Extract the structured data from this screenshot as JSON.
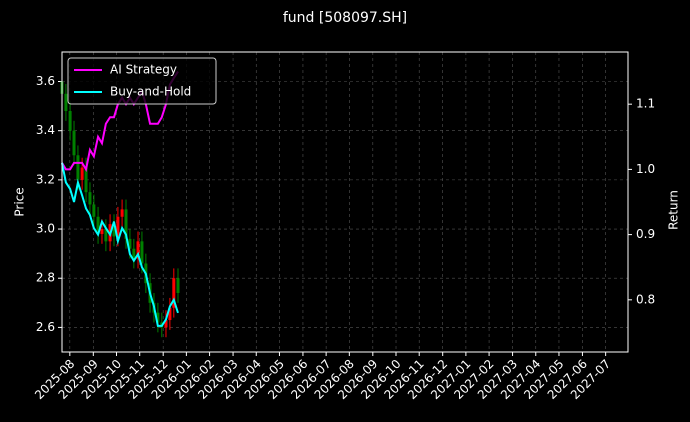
{
  "chart_data": {
    "type": "candlestick",
    "title": "fund [508097.SH]",
    "ylabel": "Price",
    "y2label": "Return",
    "x": [
      2025.555,
      2025.569,
      2025.584,
      2025.598,
      2025.612,
      2025.627,
      2025.641,
      2025.655,
      2025.669,
      2025.684,
      2025.698,
      2025.712,
      2025.727,
      2025.741,
      2025.755,
      2025.77,
      2025.784,
      2025.798,
      2025.812,
      2025.827,
      2025.841,
      2025.855,
      2025.87,
      2025.884,
      2025.898,
      2025.912,
      2025.927,
      2025.941,
      2025.955,
      2025.97
    ],
    "open": [
      3.6,
      3.55,
      3.48,
      3.4,
      3.3,
      3.2,
      3.25,
      3.15,
      3.1,
      3.05,
      2.98,
      3.0,
      2.95,
      3.02,
      2.97,
      3.05,
      3.08,
      2.96,
      2.92,
      2.88,
      2.95,
      2.86,
      2.78,
      2.7,
      2.66,
      2.62,
      2.6,
      2.63,
      2.68,
      2.8
    ],
    "high": [
      3.64,
      3.59,
      3.52,
      3.44,
      3.34,
      3.29,
      3.29,
      3.19,
      3.14,
      3.09,
      3.04,
      3.04,
      3.06,
      3.06,
      3.09,
      3.12,
      3.12,
      3.0,
      2.96,
      2.99,
      2.99,
      2.9,
      2.82,
      2.74,
      2.7,
      2.66,
      2.67,
      2.72,
      2.84,
      2.84
    ],
    "low": [
      3.51,
      3.44,
      3.36,
      3.26,
      3.16,
      3.16,
      3.11,
      3.06,
      3.01,
      2.94,
      2.94,
      2.91,
      2.91,
      2.93,
      2.93,
      3.01,
      2.92,
      2.88,
      2.84,
      2.84,
      2.82,
      2.74,
      2.66,
      2.62,
      2.58,
      2.56,
      2.56,
      2.59,
      2.64,
      2.7
    ],
    "close": [
      3.55,
      3.48,
      3.4,
      3.3,
      3.2,
      3.25,
      3.15,
      3.1,
      3.05,
      2.98,
      3.0,
      2.95,
      3.02,
      2.97,
      3.05,
      3.08,
      2.96,
      2.92,
      2.88,
      2.95,
      2.86,
      2.78,
      2.7,
      2.66,
      2.62,
      2.6,
      2.63,
      2.68,
      2.8,
      2.74
    ],
    "up_color": "#ff0000",
    "down_color": "#008000",
    "series": [
      {
        "name": "AI Strategy",
        "color": "#ff00ff",
        "axis": "y2",
        "values": [
          1.01,
          1.0,
          1.0,
          1.01,
          1.01,
          1.01,
          1.0,
          1.03,
          1.02,
          1.05,
          1.04,
          1.07,
          1.08,
          1.08,
          1.1,
          1.11,
          1.1,
          1.11,
          1.1,
          1.11,
          1.12,
          1.1,
          1.07,
          1.07,
          1.07,
          1.08,
          1.1,
          1.13,
          1.14,
          1.15
        ]
      },
      {
        "name": "Buy-and-Hold",
        "color": "#00ffff",
        "axis": "y2",
        "values": [
          1.01,
          0.98,
          0.97,
          0.95,
          0.98,
          0.96,
          0.94,
          0.93,
          0.91,
          0.9,
          0.92,
          0.91,
          0.9,
          0.92,
          0.89,
          0.91,
          0.9,
          0.87,
          0.86,
          0.87,
          0.85,
          0.84,
          0.81,
          0.79,
          0.76,
          0.76,
          0.77,
          0.79,
          0.8,
          0.78
        ]
      }
    ],
    "xlim": [
      2025.555,
      2027.58
    ],
    "xticks": [
      {
        "value": 2025.583,
        "label": "2025-08"
      },
      {
        "value": 2025.667,
        "label": "2025-09"
      },
      {
        "value": 2025.75,
        "label": "2025-10"
      },
      {
        "value": 2025.833,
        "label": "2025-11"
      },
      {
        "value": 2025.917,
        "label": "2025-12"
      },
      {
        "value": 2026,
        "label": "2026-01"
      },
      {
        "value": 2026.083,
        "label": "2026-02"
      },
      {
        "value": 2026.167,
        "label": "2026-03"
      },
      {
        "value": 2026.25,
        "label": "2026-04"
      },
      {
        "value": 2026.333,
        "label": "2026-05"
      },
      {
        "value": 2026.417,
        "label": "2026-06"
      },
      {
        "value": 2026.5,
        "label": "2026-07"
      },
      {
        "value": 2026.583,
        "label": "2026-08"
      },
      {
        "value": 2026.667,
        "label": "2026-09"
      },
      {
        "value": 2026.75,
        "label": "2026-10"
      },
      {
        "value": 2026.833,
        "label": "2026-11"
      },
      {
        "value": 2026.917,
        "label": "2026-12"
      },
      {
        "value": 2027,
        "label": "2027-01"
      },
      {
        "value": 2027.083,
        "label": "2027-02"
      },
      {
        "value": 2027.167,
        "label": "2027-03"
      },
      {
        "value": 2027.25,
        "label": "2027-04"
      },
      {
        "value": 2027.333,
        "label": "2027-05"
      },
      {
        "value": 2027.417,
        "label": "2027-06"
      },
      {
        "value": 2027.5,
        "label": "2027-07"
      }
    ],
    "ylim": [
      2.5,
      3.72
    ],
    "yticks": [
      2.6,
      2.8,
      {
        "value": 3,
        "label": "3.0"
      },
      3.2,
      3.4,
      3.6
    ],
    "y2lim": [
      0.72,
      1.18
    ],
    "y2ticks": [
      0.8,
      0.9,
      {
        "value": 1,
        "label": "1.0"
      },
      1.1
    ],
    "grid": true,
    "legend": "upper-left"
  }
}
